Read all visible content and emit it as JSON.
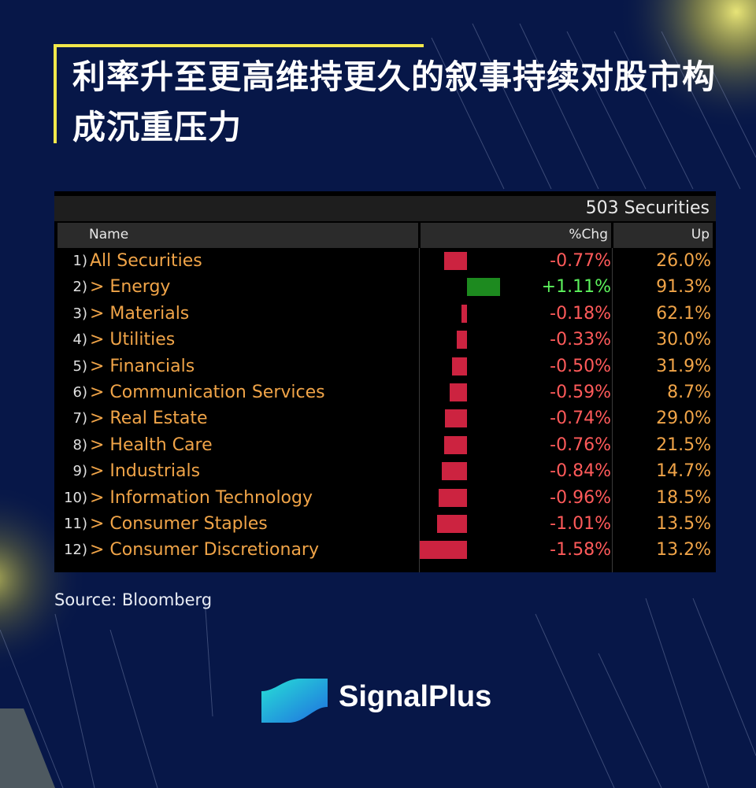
{
  "title": "利率升至更高维持更久的叙事持续对股市构成沉重压力",
  "source": "Source: Bloomberg",
  "brand": "SignalPlus",
  "colors": {
    "background": "#071748",
    "accent": "#f2e84b",
    "negative": "#cc2340",
    "positive": "#1d8a1f",
    "name_text": "#f0a448",
    "negative_text": "#ff5a5a",
    "positive_text": "#5cf25c"
  },
  "chart_data": {
    "type": "table",
    "securities_count": "503 Securities",
    "columns": [
      "Name",
      "%Chg",
      "Up"
    ],
    "rows": [
      {
        "index": "1)",
        "name": "All Securities",
        "chg": -0.77,
        "chg_label": "-0.77%",
        "up": "26.0%"
      },
      {
        "index": "2)",
        "name": "> Energy",
        "chg": 1.11,
        "chg_label": "+1.11%",
        "up": "91.3%"
      },
      {
        "index": "3)",
        "name": "> Materials",
        "chg": -0.18,
        "chg_label": "-0.18%",
        "up": "62.1%"
      },
      {
        "index": "4)",
        "name": "> Utilities",
        "chg": -0.33,
        "chg_label": "-0.33%",
        "up": "30.0%"
      },
      {
        "index": "5)",
        "name": "> Financials",
        "chg": -0.5,
        "chg_label": "-0.50%",
        "up": "31.9%"
      },
      {
        "index": "6)",
        "name": "> Communication Services",
        "chg": -0.59,
        "chg_label": "-0.59%",
        "up": "8.7%"
      },
      {
        "index": "7)",
        "name": "> Real Estate",
        "chg": -0.74,
        "chg_label": "-0.74%",
        "up": "29.0%"
      },
      {
        "index": "8)",
        "name": "> Health Care",
        "chg": -0.76,
        "chg_label": "-0.76%",
        "up": "21.5%"
      },
      {
        "index": "9)",
        "name": "> Industrials",
        "chg": -0.84,
        "chg_label": "-0.84%",
        "up": "14.7%"
      },
      {
        "index": "10)",
        "name": "> Information Technology",
        "chg": -0.96,
        "chg_label": "-0.96%",
        "up": "18.5%"
      },
      {
        "index": "11)",
        "name": "> Consumer Staples",
        "chg": -1.01,
        "chg_label": "-1.01%",
        "up": "13.5%"
      },
      {
        "index": "12)",
        "name": "> Consumer Discretionary",
        "chg": -1.58,
        "chg_label": "-1.58%",
        "up": "13.2%"
      }
    ]
  }
}
